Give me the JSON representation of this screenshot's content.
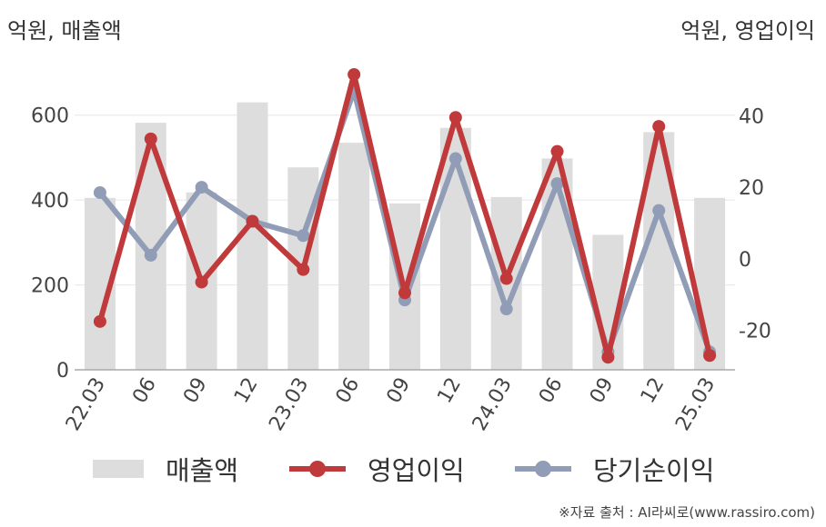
{
  "units": {
    "left": "억원, 매출액",
    "right": "억원, 영업이익"
  },
  "source": "※자료 출처 : AI라씨로(www.rassiro.com)",
  "colors": {
    "bar": "#dddddd",
    "operating": "#c0393b",
    "net": "#919db6",
    "grid": "#e6e6e6",
    "axis": "#aaaaaa",
    "text": "#444444"
  },
  "chart_data": {
    "type": "bar",
    "categories": [
      "22.03",
      "22.06",
      "22.09",
      "22.12",
      "23.03",
      "23.06",
      "23.09",
      "23.12",
      "24.03",
      "24.06",
      "24.09",
      "24.12",
      "25.03"
    ],
    "x_tick_labels": [
      "22.03",
      "06",
      "09",
      "12",
      "23.03",
      "06",
      "09",
      "12",
      "24.03",
      "06",
      "09",
      "12",
      "25.03"
    ],
    "ylim_left": [
      0,
      700
    ],
    "ylim_right": [
      -31,
      52
    ],
    "yticks_left": [
      0,
      200,
      400,
      600
    ],
    "yticks_right": [
      -20,
      0,
      20,
      40
    ],
    "grid": true,
    "series": [
      {
        "name": "매출액",
        "type": "bar",
        "axis": "left",
        "values": [
          405,
          582,
          418,
          630,
          477,
          535,
          392,
          570,
          407,
          498,
          318,
          560,
          405
        ]
      },
      {
        "name": "영업이익",
        "type": "line",
        "axis": "right",
        "values": [
          -17.5,
          33.5,
          -6.5,
          10.5,
          -3,
          51.5,
          -9.5,
          39.5,
          -5.5,
          30,
          -27.5,
          37,
          -27
        ]
      },
      {
        "name": "당기순이익",
        "type": "line",
        "axis": "right",
        "values": [
          18.5,
          1,
          20,
          10.5,
          6.5,
          47,
          -11.5,
          28,
          -14,
          21,
          -26,
          13.5,
          -26
        ]
      }
    ]
  }
}
